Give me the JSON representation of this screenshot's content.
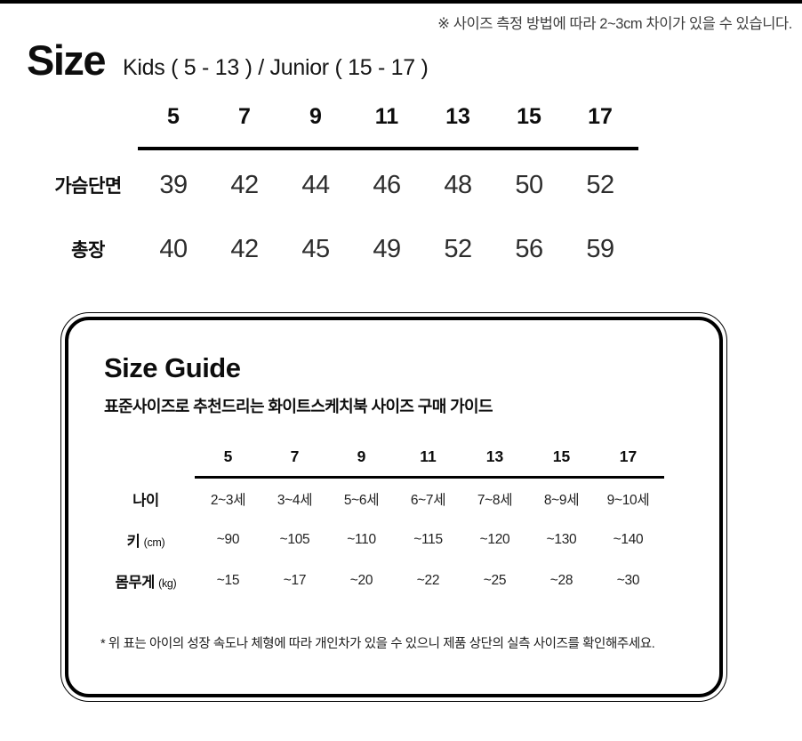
{
  "top_note": "※ 사이즈 측정 방법에 따라 2~3cm 차이가 있을 수 있습니다.",
  "size_section": {
    "title": "Size",
    "subtitle": "Kids ( 5 - 13 ) / Junior ( 15 - 17 )",
    "columns": [
      "5",
      "7",
      "9",
      "11",
      "13",
      "15",
      "17"
    ],
    "rows": [
      {
        "label": "가슴단면",
        "values": [
          "39",
          "42",
          "44",
          "46",
          "48",
          "50",
          "52"
        ]
      },
      {
        "label": "총장",
        "values": [
          "40",
          "42",
          "45",
          "49",
          "52",
          "56",
          "59"
        ]
      }
    ]
  },
  "guide_section": {
    "title": "Size Guide",
    "subtitle": "표준사이즈로 추천드리는 화이트스케치북 사이즈 구매 가이드",
    "columns": [
      "5",
      "7",
      "9",
      "11",
      "13",
      "15",
      "17"
    ],
    "rows": [
      {
        "label": "나이",
        "unit": "",
        "values": [
          "2~3세",
          "3~4세",
          "5~6세",
          "6~7세",
          "7~8세",
          "8~9세",
          "9~10세"
        ]
      },
      {
        "label": "키",
        "unit": "(cm)",
        "values": [
          "~90",
          "~105",
          "~110",
          "~115",
          "~120",
          "~130",
          "~140"
        ]
      },
      {
        "label": "몸무게",
        "unit": "(kg)",
        "values": [
          "~15",
          "~17",
          "~20",
          "~22",
          "~25",
          "~28",
          "~30"
        ]
      }
    ],
    "footnote": "* 위 표는 아이의 성장 속도나 체형에 따라 개인차가 있을 수 있으니 제품 상단의 실측 사이즈를 확인해주세요."
  },
  "colors": {
    "text": "#111111",
    "values": "#2d2d2d",
    "note": "#3d3d3d",
    "border": "#000000",
    "background": "#ffffff"
  }
}
